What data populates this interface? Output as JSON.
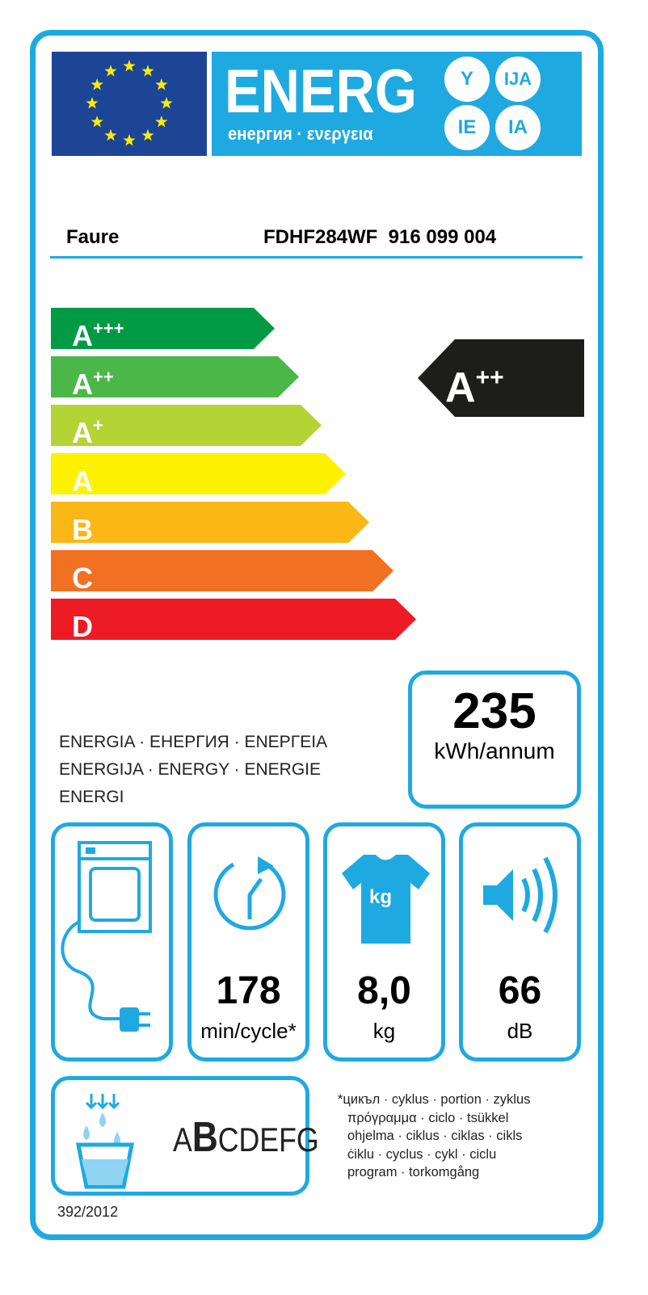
{
  "header": {
    "energy_word": "ENERG",
    "energy_sub": "енергия · ενεργεια",
    "suffixes": [
      "Y",
      "IJA",
      "IE",
      "IA"
    ],
    "flag": "eu-flag-icon"
  },
  "product": {
    "supplier": "Faure",
    "model": "FDHF284WF  916 099 004"
  },
  "scale": [
    {
      "label": "A",
      "sup": "+++",
      "color": "#009a44"
    },
    {
      "label": "A",
      "sup": "++",
      "color": "#4bb748"
    },
    {
      "label": "A",
      "sup": "+",
      "color": "#b4d334"
    },
    {
      "label": "A",
      "sup": "",
      "color": "#fef200"
    },
    {
      "label": "B",
      "sup": "",
      "color": "#fbb716"
    },
    {
      "label": "C",
      "sup": "",
      "color": "#f27022"
    },
    {
      "label": "D",
      "sup": "",
      "color": "#ed1c24"
    }
  ],
  "rating": {
    "label": "A",
    "sup": "++",
    "color": "#1d1d1b"
  },
  "energy_consumption": {
    "value": "235",
    "unit": "kWh/annum"
  },
  "energia_text": [
    "ENERGIA · ЕНЕРГИЯ · ΕΝΕΡΓΕΙΑ",
    "ENERGIJA · ENERGY · ENERGIE",
    "ENERGI"
  ],
  "icons": {
    "dryer": "dryer-plug-icon",
    "cycle": {
      "icon": "cycle-time-icon",
      "value": "178",
      "unit": "min/cycle*"
    },
    "capacity": {
      "icon": "tshirt-kg-icon",
      "badge": "kg",
      "value": "8,0",
      "unit": "kg"
    },
    "noise": {
      "icon": "speaker-icon",
      "value": "66",
      "unit": "dB"
    }
  },
  "condensation": {
    "icon": "condensation-icon",
    "classes_pre": "A",
    "classes_sel": "B",
    "classes_post": "CDEFG"
  },
  "footnote": [
    "*цикъл · cyklus · portion · zyklus",
    "πρόγραμμα · ciclo · tsükkel",
    "ohjelma · ciklus · ciklas · cikls",
    "ċiklu · cyclus · cykl · ciclu",
    "program · torkomgång"
  ],
  "regulation": "392/2012",
  "accent": "#1fa9e1"
}
